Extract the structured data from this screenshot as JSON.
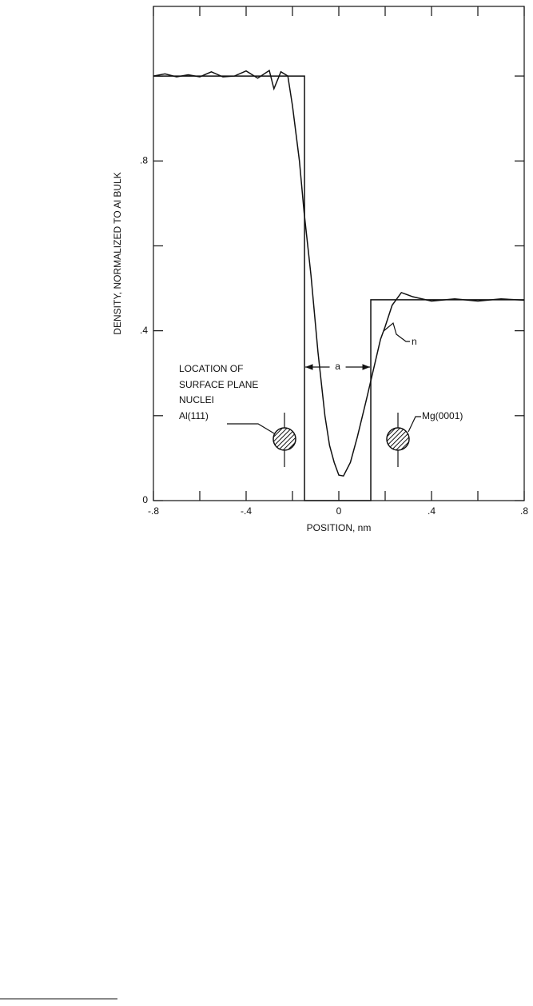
{
  "chart_data": {
    "type": "line",
    "xlabel": "POSITION, nm",
    "ylabel": "DENSITY, NORMALIZED TO Al BULK",
    "xlim": [
      -0.8,
      0.8
    ],
    "ylim": [
      0,
      1.164
    ],
    "xticks": [
      {
        "value": -0.8,
        "label": "-.8"
      },
      {
        "value": -0.4,
        "label": "-.4"
      },
      0,
      {
        "value": 0.4,
        "label": ".4"
      },
      {
        "value": 0.8,
        "label": ".8"
      }
    ],
    "xticks_minor": [
      -0.6,
      -0.2,
      0.2,
      0.6
    ],
    "yticks": [
      0,
      {
        "value": 0.4,
        "label": ".4"
      },
      {
        "value": 0.8,
        "label": ".8"
      }
    ],
    "yticks_minor": [
      0.2,
      0.6,
      1.0
    ],
    "series": [
      {
        "color": "#111111",
        "x": [
          -0.8,
          -0.148,
          -0.148,
          0.138,
          0.138,
          0.8
        ],
        "values": [
          1.0,
          1.0,
          0,
          0,
          0.473,
          0.473
        ]
      },
      {
        "name": "n",
        "color": "#111111",
        "x": [
          -0.8,
          -0.75,
          -0.7,
          -0.65,
          -0.6,
          -0.55,
          -0.5,
          -0.45,
          -0.4,
          -0.35,
          -0.3,
          -0.28,
          -0.25,
          -0.22,
          -0.2,
          -0.17,
          -0.15,
          -0.12,
          -0.09,
          -0.06,
          -0.04,
          -0.02,
          0,
          0.02,
          0.05,
          0.08,
          0.12,
          0.15,
          0.18,
          0.2,
          0.23,
          0.27,
          0.32,
          0.4,
          0.5,
          0.6,
          0.7,
          0.8
        ],
        "values": [
          1.0,
          1.005,
          0.998,
          1.003,
          0.998,
          1.01,
          0.998,
          1.0,
          1.012,
          0.995,
          1.013,
          0.97,
          1.01,
          1.0,
          0.93,
          0.8,
          0.68,
          0.53,
          0.35,
          0.2,
          0.13,
          0.09,
          0.06,
          0.058,
          0.09,
          0.15,
          0.24,
          0.31,
          0.38,
          0.41,
          0.46,
          0.49,
          0.48,
          0.47,
          0.475,
          0.47,
          0.475,
          0.472
        ]
      }
    ],
    "annotations": {
      "location": [
        "LOCATION OF",
        "SURFACE PLANE",
        "NUCLEI"
      ],
      "left_plane": "Al(111)",
      "right_plane": "Mg(0001)",
      "gap": "a"
    }
  }
}
